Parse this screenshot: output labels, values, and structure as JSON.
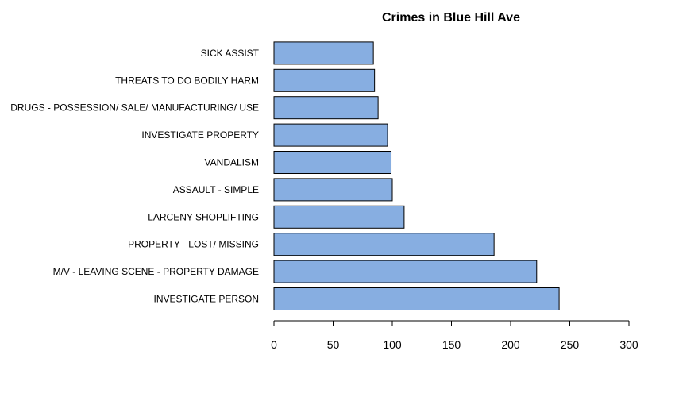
{
  "chart_data": {
    "type": "bar",
    "orientation": "horizontal",
    "title": "Crimes in Blue Hill Ave",
    "xlabel": "",
    "ylabel": "",
    "categories": [
      "INVESTIGATE PERSON",
      "M/V - LEAVING SCENE - PROPERTY DAMAGE",
      "PROPERTY - LOST/ MISSING",
      "LARCENY SHOPLIFTING",
      "ASSAULT - SIMPLE",
      "VANDALISM",
      "INVESTIGATE PROPERTY",
      "DRUGS - POSSESSION/ SALE/ MANUFACTURING/ USE",
      "THREATS TO DO BODILY HARM",
      "SICK ASSIST"
    ],
    "values": [
      241,
      222,
      186,
      110,
      100,
      99,
      96,
      88,
      85,
      84
    ],
    "xlim": [
      0,
      300
    ],
    "xticks": [
      0,
      50,
      100,
      150,
      200,
      250,
      300
    ],
    "bar_color": "#87AEE1",
    "bar_border_color": "#000000",
    "grid": false,
    "legend": "none"
  }
}
